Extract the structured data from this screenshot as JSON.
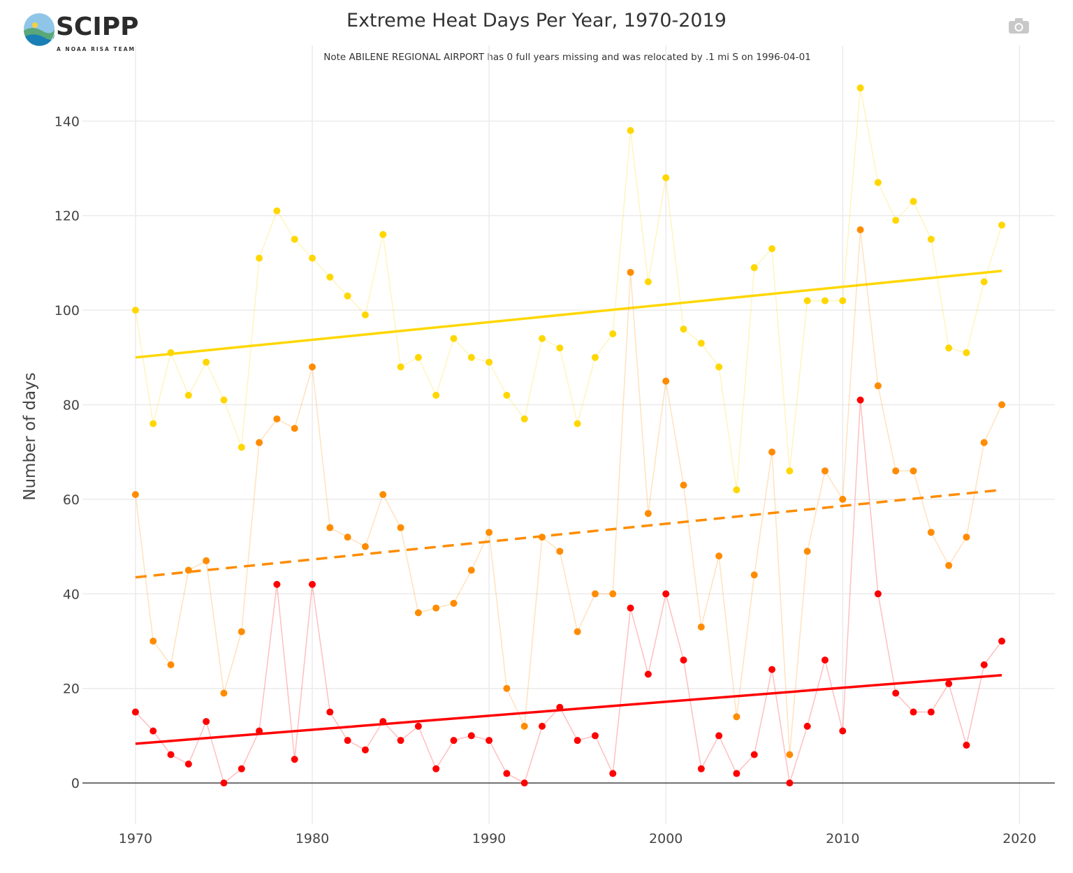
{
  "logo": {
    "name": "SCIPP",
    "tagline": "A NOAA RISA TEAM"
  },
  "toolbar": {
    "camera_icon": "camera-icon"
  },
  "chart_data": {
    "type": "line",
    "title": "Extreme Heat Days Per Year, 1970-2019",
    "subtitle": "Note ABILENE REGIONAL AIRPORT has 0 full years missing and was relocated by .1 mi S on 1996-04-01",
    "xlabel": "",
    "ylabel": "Number of days",
    "xlim": [
      1967,
      2022
    ],
    "ylim": [
      -8.7,
      156
    ],
    "xticks": [
      1970,
      1980,
      1990,
      2000,
      2010,
      2020
    ],
    "yticks": [
      0,
      20,
      40,
      60,
      80,
      100,
      120,
      140
    ],
    "grid": true,
    "legend": "none",
    "x": [
      1970,
      1971,
      1972,
      1973,
      1974,
      1975,
      1976,
      1977,
      1978,
      1979,
      1980,
      1981,
      1982,
      1983,
      1984,
      1985,
      1986,
      1987,
      1988,
      1989,
      1990,
      1991,
      1992,
      1993,
      1994,
      1995,
      1996,
      1997,
      1998,
      1999,
      2000,
      2001,
      2002,
      2003,
      2004,
      2005,
      2006,
      2007,
      2008,
      2009,
      2010,
      2011,
      2012,
      2013,
      2014,
      2015,
      2016,
      2017,
      2018,
      2019
    ],
    "series": [
      {
        "color": "#FFD700",
        "values": [
          100,
          76,
          91,
          82,
          89,
          81,
          71,
          111,
          121,
          115,
          111,
          107,
          103,
          99,
          116,
          88,
          90,
          82,
          94,
          90,
          89,
          82,
          77,
          94,
          92,
          76,
          90,
          95,
          138,
          106,
          128,
          96,
          93,
          88,
          62,
          109,
          113,
          66,
          102,
          102,
          102,
          147,
          127,
          119,
          123,
          115,
          92,
          91,
          106,
          118
        ],
        "trend": {
          "x": [
            1970,
            2019
          ],
          "y": [
            90,
            108.3
          ],
          "dash": "solid"
        }
      },
      {
        "color": "#FF8C00",
        "values": [
          61,
          30,
          25,
          45,
          47,
          19,
          32,
          72,
          77,
          75,
          88,
          54,
          52,
          50,
          61,
          54,
          36,
          37,
          38,
          45,
          53,
          20,
          12,
          52,
          49,
          32,
          40,
          40,
          108,
          57,
          85,
          63,
          33,
          48,
          14,
          44,
          70,
          6,
          49,
          66,
          60,
          117,
          84,
          66,
          66,
          53,
          46,
          52,
          72,
          80
        ],
        "trend": {
          "x": [
            1970,
            2019
          ],
          "y": [
            43.5,
            62
          ],
          "dash": "dashed"
        }
      },
      {
        "color": "#FF0000",
        "values": [
          15,
          11,
          6,
          4,
          13,
          0,
          3,
          11,
          42,
          5,
          42,
          15,
          9,
          7,
          13,
          9,
          12,
          3,
          9,
          10,
          9,
          2,
          0,
          12,
          16,
          9,
          10,
          2,
          37,
          23,
          40,
          26,
          3,
          10,
          2,
          6,
          24,
          0,
          12,
          26,
          11,
          81,
          40,
          19,
          15,
          15,
          21,
          8,
          25,
          30
        ],
        "trend": {
          "x": [
            1970,
            2019
          ],
          "y": [
            8.3,
            22.8
          ],
          "dash": "solid"
        }
      }
    ]
  }
}
